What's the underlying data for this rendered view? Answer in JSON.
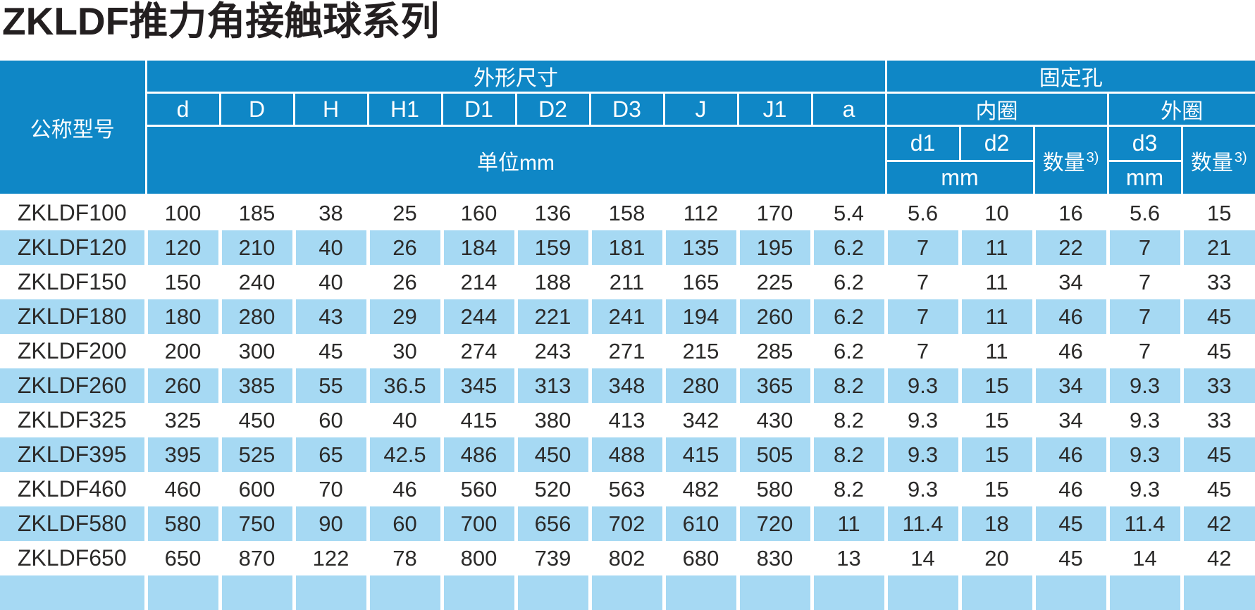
{
  "title": "ZKLDF推力角接触球系列",
  "table": {
    "model_header": "公称型号",
    "dimensions_group": "外形尺寸",
    "holes_group": "固定孔",
    "dim_cols": [
      "d",
      "D",
      "H",
      "H1",
      "D1",
      "D2",
      "D3",
      "J",
      "J1",
      "a"
    ],
    "unit_label": "单位mm",
    "inner_ring_label": "内圈",
    "outer_ring_label": "外圈",
    "hole_cols": [
      "d1",
      "d2",
      "d3"
    ],
    "qty_label": "数量",
    "qty_sup": "3)",
    "mm_label": "mm",
    "rows": [
      {
        "model": "ZKLDF100",
        "values": [
          "100",
          "185",
          "38",
          "25",
          "160",
          "136",
          "158",
          "112",
          "170",
          "5.4",
          "5.6",
          "10",
          "16",
          "5.6",
          "15"
        ]
      },
      {
        "model": "ZKLDF120",
        "values": [
          "120",
          "210",
          "40",
          "26",
          "184",
          "159",
          "181",
          "135",
          "195",
          "6.2",
          "7",
          "11",
          "22",
          "7",
          "21"
        ]
      },
      {
        "model": "ZKLDF150",
        "values": [
          "150",
          "240",
          "40",
          "26",
          "214",
          "188",
          "211",
          "165",
          "225",
          "6.2",
          "7",
          "11",
          "34",
          "7",
          "33"
        ]
      },
      {
        "model": "ZKLDF180",
        "values": [
          "180",
          "280",
          "43",
          "29",
          "244",
          "221",
          "241",
          "194",
          "260",
          "6.2",
          "7",
          "11",
          "46",
          "7",
          "45"
        ]
      },
      {
        "model": "ZKLDF200",
        "values": [
          "200",
          "300",
          "45",
          "30",
          "274",
          "243",
          "271",
          "215",
          "285",
          "6.2",
          "7",
          "11",
          "46",
          "7",
          "45"
        ]
      },
      {
        "model": "ZKLDF260",
        "values": [
          "260",
          "385",
          "55",
          "36.5",
          "345",
          "313",
          "348",
          "280",
          "365",
          "8.2",
          "9.3",
          "15",
          "34",
          "9.3",
          "33"
        ]
      },
      {
        "model": "ZKLDF325",
        "values": [
          "325",
          "450",
          "60",
          "40",
          "415",
          "380",
          "413",
          "342",
          "430",
          "8.2",
          "9.3",
          "15",
          "34",
          "9.3",
          "33"
        ]
      },
      {
        "model": "ZKLDF395",
        "values": [
          "395",
          "525",
          "65",
          "42.5",
          "486",
          "450",
          "488",
          "415",
          "505",
          "8.2",
          "9.3",
          "15",
          "46",
          "9.3",
          "45"
        ]
      },
      {
        "model": "ZKLDF460",
        "values": [
          "460",
          "600",
          "70",
          "46",
          "560",
          "520",
          "563",
          "482",
          "580",
          "8.2",
          "9.3",
          "15",
          "46",
          "9.3",
          "45"
        ]
      },
      {
        "model": "ZKLDF580",
        "values": [
          "580",
          "750",
          "90",
          "60",
          "700",
          "656",
          "702",
          "610",
          "720",
          "11",
          "11.4",
          "18",
          "45",
          "11.4",
          "42"
        ]
      },
      {
        "model": "ZKLDF650",
        "values": [
          "650",
          "870",
          "122",
          "78",
          "800",
          "739",
          "802",
          "680",
          "830",
          "13",
          "14",
          "20",
          "45",
          "14",
          "42"
        ]
      }
    ]
  },
  "colors": {
    "header_blue": "#0f87c6",
    "row_stripe_blue": "#a6d9f3",
    "text_dark": "#2b2a29",
    "title_black": "#231f20"
  }
}
